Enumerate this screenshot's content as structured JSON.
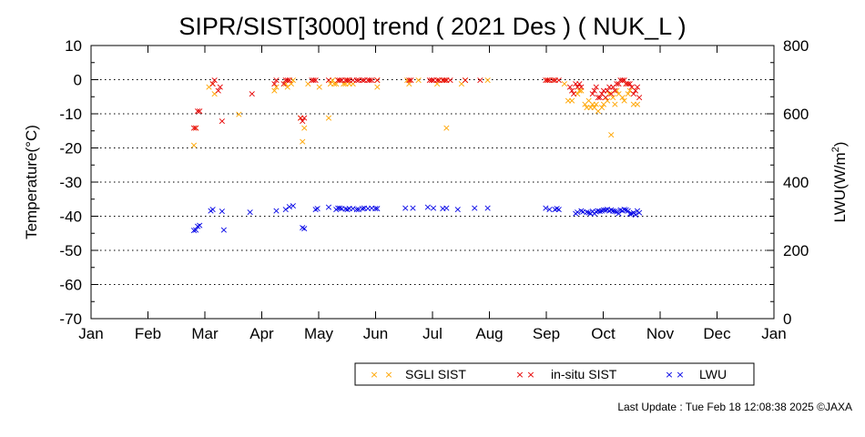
{
  "chart_data": {
    "type": "scatter",
    "title": "SIPR/SIST[3000] trend ( 2021 Des ) ( NUK_L )",
    "ylabel_left": "Temperature(°C)",
    "ylabel_right_prefix": "LWU(W/m",
    "ylabel_right_sup": "2",
    "ylabel_right_suffix": ")",
    "x_ticks": [
      "Jan",
      "Feb",
      "Mar",
      "Apr",
      "May",
      "Jun",
      "Jul",
      "Aug",
      "Sep",
      "Oct",
      "Nov",
      "Dec",
      "Jan"
    ],
    "ylim_left": [
      -70,
      10
    ],
    "y_ticks_left": [
      "10",
      "0",
      "-10",
      "-20",
      "-30",
      "-40",
      "-50",
      "-60",
      "-70"
    ],
    "ylim_right": [
      0,
      800
    ],
    "y_ticks_right": [
      "800",
      "600",
      "400",
      "200",
      "0"
    ],
    "grid": "dotted horizontal",
    "legend_position": "bottom-right",
    "marker_symbol": "×",
    "series": [
      {
        "name": "SGLI SIST",
        "color": "#ffa500",
        "axis": "left",
        "x": [
          55,
          56,
          63,
          65,
          66,
          79,
          98,
          99,
          104,
          105,
          107,
          108,
          112,
          113,
          114,
          116,
          122,
          127,
          128,
          129,
          130,
          131,
          132,
          135,
          136,
          137,
          138,
          140,
          153,
          153,
          169,
          170,
          175,
          185,
          186,
          188,
          190,
          190,
          198,
          200,
          212,
          244,
          248,
          253,
          255,
          257,
          260,
          261,
          262,
          264,
          265,
          266,
          267,
          268,
          269,
          270,
          271,
          273,
          274,
          275,
          276,
          277,
          278,
          279,
          280,
          281,
          282,
          284,
          285,
          286,
          287,
          288,
          290,
          292
        ],
        "values": [
          -19,
          -14,
          -2,
          -1,
          -4,
          -10,
          -3,
          -2,
          -1,
          -2,
          -1,
          0,
          -11,
          -18,
          -14,
          -1,
          -2,
          -11,
          -1,
          0,
          -1,
          -1,
          0,
          -1,
          -1,
          0,
          -1,
          -1,
          0,
          -2,
          0,
          -1,
          0,
          -1,
          0,
          0,
          0,
          -14,
          -1,
          0,
          0,
          0,
          0,
          -1,
          -6,
          -6,
          -4,
          -3,
          -3,
          -7,
          -8,
          -6,
          -8,
          -7,
          -8,
          -7,
          -9,
          -8,
          -7,
          -5,
          -6,
          -4,
          -16,
          -5,
          -7,
          -3,
          -4,
          -5,
          -6,
          -1,
          -4,
          -3,
          -7,
          -7
        ]
      },
      {
        "name": "in-situ SIST",
        "color": "#e60000",
        "axis": "left",
        "x": [
          55,
          56,
          57,
          58,
          65,
          66,
          68,
          69,
          70,
          86,
          98,
          99,
          103,
          104,
          105,
          106,
          112,
          113,
          114,
          118,
          119,
          120,
          127,
          132,
          133,
          134,
          136,
          137,
          138,
          140,
          142,
          143,
          145,
          146,
          148,
          149,
          150,
          153,
          170,
          171,
          181,
          182,
          183,
          185,
          186,
          188,
          189,
          190,
          192,
          200,
          208,
          243,
          244,
          245,
          247,
          248,
          250,
          256,
          257,
          258,
          259,
          260,
          261,
          262,
          268,
          269,
          270,
          271,
          272,
          273,
          274,
          275,
          276,
          277,
          278,
          279,
          280,
          281,
          282,
          283,
          284,
          285,
          286,
          287,
          288,
          289,
          290,
          291,
          292,
          293
        ],
        "values": [
          -14,
          -14,
          -9,
          -9,
          -1,
          0,
          -3,
          -2,
          -12,
          -4,
          -1,
          0,
          -1,
          0,
          0,
          0,
          -11,
          -12,
          -11,
          0,
          0,
          0,
          0,
          0,
          0,
          0,
          0,
          0,
          0,
          0,
          0,
          0,
          0,
          0,
          0,
          0,
          0,
          0,
          0,
          0,
          0,
          0,
          0,
          0,
          0,
          0,
          0,
          0,
          0,
          0,
          0,
          0,
          0,
          0,
          0,
          0,
          0,
          -2,
          -3,
          -4,
          -1,
          -2,
          -1,
          -2,
          -4,
          -3,
          -2,
          -5,
          -5,
          -4,
          -3,
          -5,
          -3,
          -2,
          -4,
          -2,
          -3,
          -1,
          -1,
          0,
          0,
          0,
          -1,
          -1,
          -1,
          -2,
          -4,
          -3,
          -2,
          -5
        ]
      },
      {
        "name": "LWU",
        "color": "#0000e6",
        "axis": "right",
        "x": [
          55,
          56,
          57,
          58,
          64,
          65,
          70,
          71,
          85,
          99,
          104,
          106,
          108,
          113,
          114,
          120,
          121,
          127,
          131,
          132,
          133,
          134,
          136,
          137,
          138,
          140,
          142,
          143,
          145,
          146,
          148,
          150,
          152,
          153,
          168,
          172,
          180,
          183,
          188,
          190,
          196,
          205,
          212,
          243,
          245,
          248,
          249,
          250,
          259,
          260,
          262,
          263,
          265,
          266,
          267,
          268,
          269,
          270,
          271,
          272,
          273,
          274,
          275,
          276,
          277,
          278,
          279,
          280,
          281,
          282,
          283,
          284,
          285,
          286,
          287,
          288,
          289,
          290,
          291,
          292,
          293
        ],
        "values": [
          260,
          262,
          272,
          275,
          318,
          322,
          316,
          262,
          314,
          318,
          321,
          330,
          332,
          268,
          265,
          322,
          324,
          328,
          322,
          326,
          325,
          324,
          323,
          322,
          324,
          324,
          322,
          322,
          324,
          325,
          324,
          325,
          324,
          324,
          326,
          325,
          328,
          326,
          324,
          326,
          322,
          326,
          326,
          325,
          322,
          322,
          324,
          322,
          310,
          314,
          318,
          315,
          313,
          312,
          310,
          316,
          310,
          315,
          318,
          316,
          318,
          320,
          320,
          322,
          318,
          320,
          318,
          316,
          315,
          310,
          320,
          318,
          322,
          320,
          318,
          308,
          310,
          312,
          306,
          318,
          312
        ]
      }
    ]
  },
  "legend": {
    "items": [
      {
        "label": "SGLI SIST",
        "color": "#ffa500"
      },
      {
        "label": "in-situ SIST",
        "color": "#e60000"
      },
      {
        "label": "LWU",
        "color": "#0000e6"
      }
    ]
  },
  "footer": {
    "last_update": "Last Update : Tue Feb 18 12:08:38 2025  ©JAXA"
  }
}
